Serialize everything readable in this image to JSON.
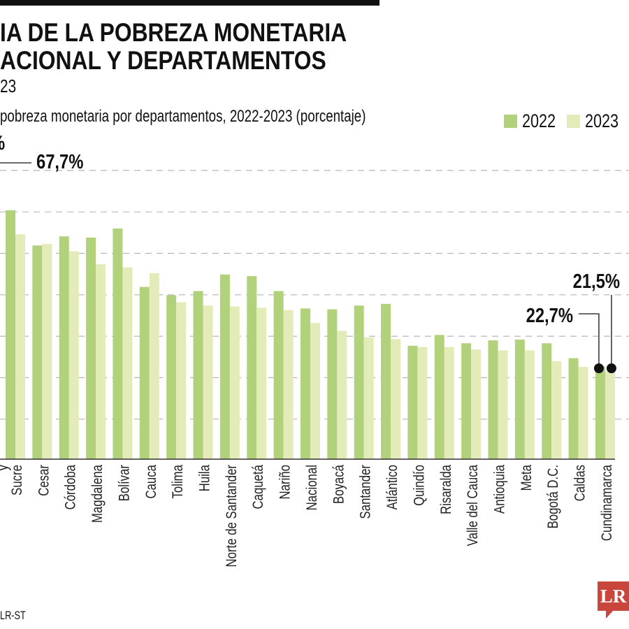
{
  "header": {
    "title_line1": "IA DE LA POBREZA MONETARIA",
    "title_line2": "ACIONAL Y DEPARTAMENTOS",
    "year_fragment": "23",
    "subtitle": "pobreza monetaria por departamentos, 2022-2023 (porcentaje)"
  },
  "source": "LR-ST",
  "logo_text": "LR",
  "colors": {
    "2022": "#b1d27b",
    "2023": "#e3ecb9",
    "grid": "#b5b5b5",
    "text": "#111111",
    "logo": "#c9463d"
  },
  "chart_data": {
    "type": "bar",
    "grid": true,
    "legend": "top-right",
    "ylim": [
      0,
      70
    ],
    "yticks": [
      10,
      20,
      30,
      40,
      50,
      60,
      70
    ],
    "categories": [
      "Sucre",
      "Cesar",
      "Córdoba",
      "Magdalena",
      "Bolívar",
      "Cauca",
      "Tolima",
      "Huila",
      "Norte de Santander",
      "Caquetá",
      "Nariño",
      "Nacional",
      "Boyacá",
      "Santander",
      "Atlántico",
      "Quindío",
      "Risaralda",
      "Valle del Cauca",
      "Antioquia",
      "Meta",
      "Bogotá D.C.",
      "Caldas",
      "Cundinamarca"
    ],
    "partial_left_label": "y",
    "series": [
      {
        "name": "2022",
        "values": [
          60.4,
          51.9,
          54.1,
          53.8,
          56.0,
          41.9,
          39.9,
          40.9,
          44.9,
          44.5,
          40.9,
          36.7,
          36.5,
          37.4,
          37.8,
          27.7,
          30.3,
          28.3,
          29.0,
          29.2,
          28.3,
          24.7,
          22.7
        ]
      },
      {
        "name": "2023",
        "values": [
          54.6,
          52.3,
          50.5,
          47.4,
          46.6,
          45.2,
          38.2,
          37.4,
          37.2,
          36.9,
          36.3,
          33.2,
          31.3,
          29.7,
          29.3,
          27.4,
          27.4,
          26.8,
          26.6,
          26.6,
          24.0,
          22.6,
          21.5
        ]
      }
    ],
    "annotations": [
      {
        "text": "67,7%"
      },
      {
        "text": "%"
      },
      {
        "text": "22,7%",
        "category": "Cundinamarca",
        "series": "2022"
      },
      {
        "text": "21,5%",
        "category": "Cundinamarca",
        "series": "2023"
      }
    ]
  }
}
